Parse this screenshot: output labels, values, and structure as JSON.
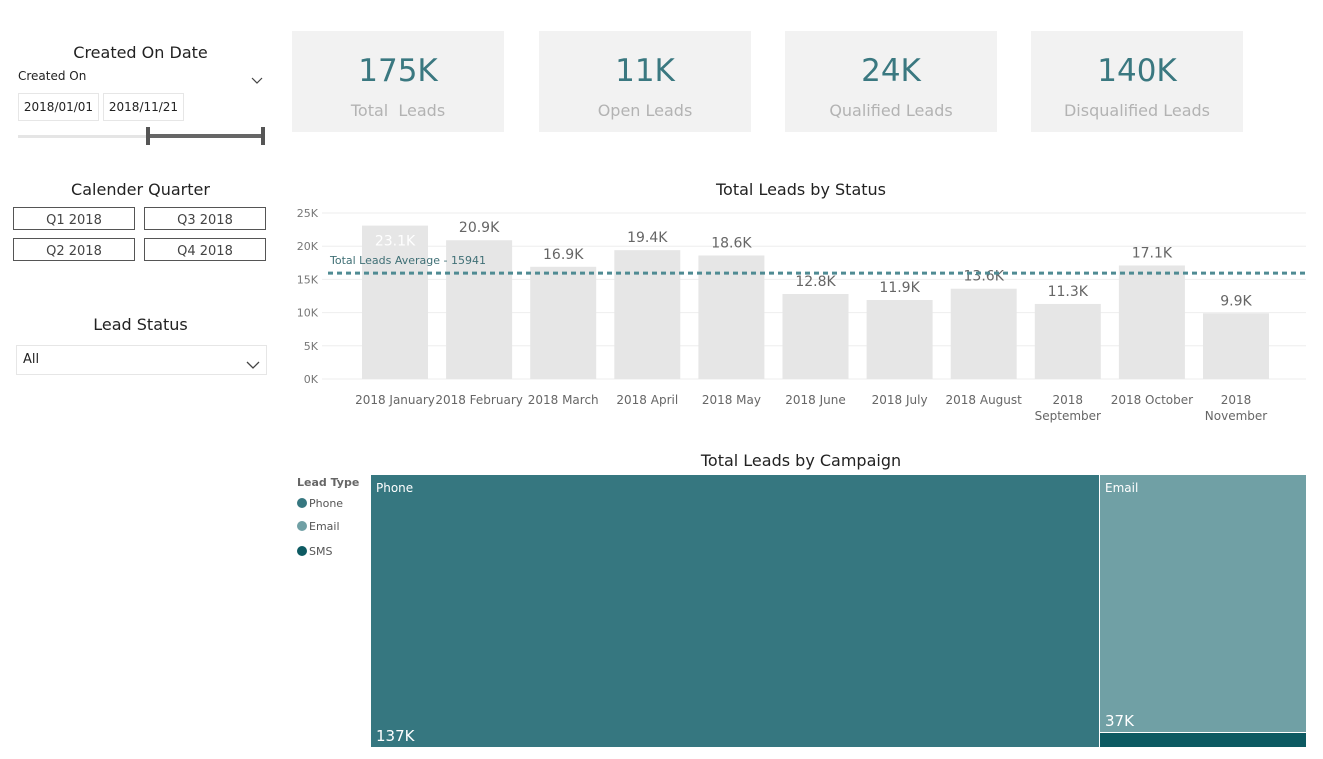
{
  "slicers": {
    "date": {
      "title": "Created On Date",
      "field_label": "Created On",
      "start": "2018/01/01",
      "end": "2018/11/21",
      "range_fraction": [
        0.53,
        1.0
      ]
    },
    "quarter": {
      "title": "Calender Quarter",
      "buttons": [
        "Q1 2018",
        "Q3 2018",
        "Q2 2018",
        "Q4 2018"
      ]
    },
    "status": {
      "title": "Lead Status",
      "selected": "All"
    }
  },
  "kpis": [
    {
      "value": "175K",
      "label": "Total  Leads"
    },
    {
      "value": "11K",
      "label": "Open Leads"
    },
    {
      "value": "24K",
      "label": "Qualified Leads"
    },
    {
      "value": "140K",
      "label": "Disqualified Leads"
    }
  ],
  "colors": {
    "accent": "#3a7880",
    "bar": "#e6e6e6",
    "phone": "#367780",
    "email": "#70a0a5",
    "sms": "#0d5a62"
  },
  "chart_data": [
    {
      "type": "bar",
      "title": "Total Leads by Status",
      "categories": [
        "2018 January",
        "2018 February",
        "2018 March",
        "2018 April",
        "2018 May",
        "2018 June",
        "2018 July",
        "2018 August",
        "2018 September",
        "2018 October",
        "2018 November"
      ],
      "values": [
        23100,
        20900,
        16900,
        19400,
        18600,
        12800,
        11900,
        13600,
        11300,
        17100,
        9900
      ],
      "data_labels": [
        "23.1K",
        "20.9K",
        "16.9K",
        "19.4K",
        "18.6K",
        "12.8K",
        "11.9K",
        "13.6K",
        "11.3K",
        "17.1K",
        "9.9K"
      ],
      "ylim": [
        0,
        25000
      ],
      "yticks": [
        0,
        5000,
        10000,
        15000,
        20000,
        25000
      ],
      "ytick_labels": [
        "0K",
        "5K",
        "10K",
        "15K",
        "20K",
        "25K"
      ],
      "grid": true,
      "reference_line": {
        "label": "Total Leads Average - 15941",
        "value": 15941
      }
    },
    {
      "type": "treemap",
      "title": "Total Leads by Campaign",
      "legend_title": "Lead Type",
      "legend": [
        "Phone",
        "Email",
        "SMS"
      ],
      "items": [
        {
          "name": "Phone",
          "value": 137000,
          "label": "137K"
        },
        {
          "name": "Email",
          "value": 37000,
          "label": "37K"
        },
        {
          "name": "SMS",
          "value": 1000,
          "label": ""
        }
      ]
    }
  ]
}
